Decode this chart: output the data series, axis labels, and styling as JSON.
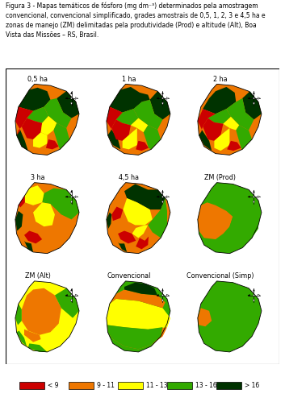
{
  "title_text": "Figura 3 - Mapas temáticos de fósforo (mg dm⁻³) determinados pela amostragem\nconvencional, convencional simplificado, grades amostrais de 0,5, 1, 2, 3 e 4,5 ha e\nzonas de manejo (ZM) delimitadas pela produtividade (Prod) e altitude (Alt), Boa\nVista das Missões – RS, Brasil.",
  "panel_labels": [
    "0,5 ha",
    "1 ha",
    "2 ha",
    "3 ha",
    "4,5 ha",
    "ZM (Prod)",
    "ZM (Alt)",
    "Convencional",
    "Convencional (Simp)"
  ],
  "legend_labels": [
    "< 9",
    "9 - 11",
    "11 - 13",
    "13 - 16",
    "> 16"
  ],
  "legend_colors": [
    "#cc0000",
    "#ee7700",
    "#ffff00",
    "#33aa00",
    "#003300"
  ],
  "background_color": "#ffffff",
  "RED": "#cc0000",
  "ORA": "#ee7700",
  "YEL": "#ffff00",
  "LGR": "#33aa00",
  "DGR": "#003300"
}
